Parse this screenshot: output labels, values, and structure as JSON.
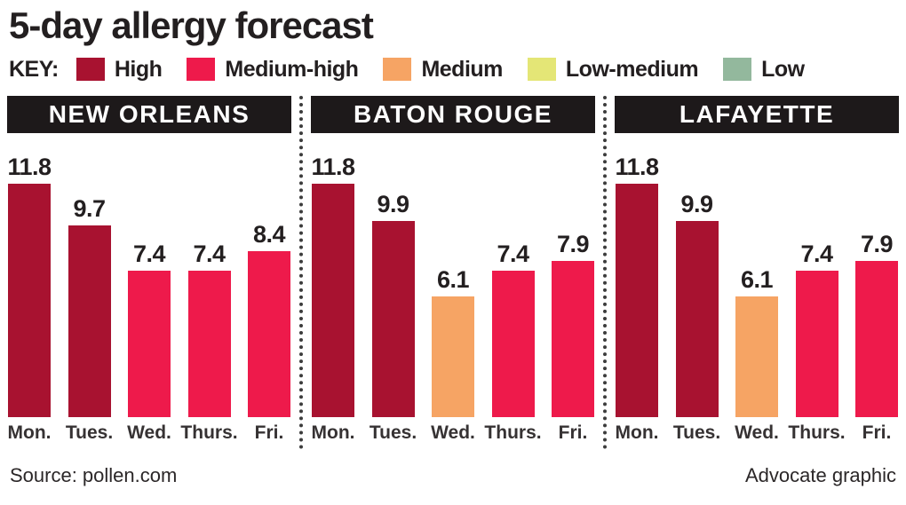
{
  "title": "5-day allergy forecast",
  "key": {
    "label": "KEY:",
    "items": [
      {
        "label": "High",
        "color": "#a81230"
      },
      {
        "label": "Medium-high",
        "color": "#ee1a4b"
      },
      {
        "label": "Medium",
        "color": "#f6a464"
      },
      {
        "label": "Low-medium",
        "color": "#e4e676"
      },
      {
        "label": "Low",
        "color": "#93b89d"
      }
    ]
  },
  "chart_data": {
    "type": "bar",
    "categories": [
      "Mon.",
      "Tues.",
      "Wed.",
      "Thurs.",
      "Fri."
    ],
    "panels": [
      {
        "title": "NEW ORLEANS",
        "values": [
          11.8,
          9.7,
          7.4,
          7.4,
          8.4
        ],
        "levels": [
          "High",
          "High",
          "Medium-high",
          "Medium-high",
          "Medium-high"
        ]
      },
      {
        "title": "BATON ROUGE",
        "values": [
          11.8,
          9.9,
          6.1,
          7.4,
          7.9
        ],
        "levels": [
          "High",
          "High",
          "Medium",
          "Medium-high",
          "Medium-high"
        ]
      },
      {
        "title": "LAFAYETTE",
        "values": [
          11.8,
          9.9,
          6.1,
          7.4,
          7.9
        ],
        "levels": [
          "High",
          "High",
          "Medium",
          "Medium-high",
          "Medium-high"
        ]
      }
    ],
    "ylim": [
      0,
      12.5
    ],
    "value_labels": true,
    "legend_position": "top",
    "grid": false
  },
  "footer": {
    "source": "Source: pollen.com",
    "credit": "Advocate graphic"
  }
}
